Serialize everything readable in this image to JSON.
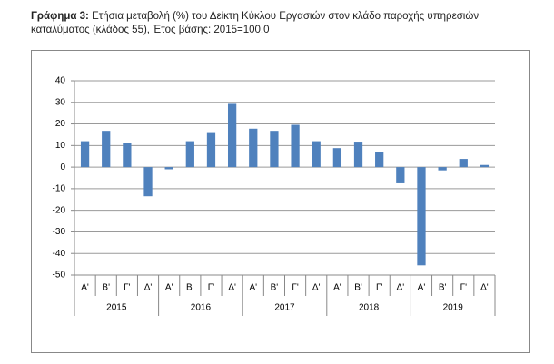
{
  "chart_data": {
    "type": "bar",
    "title_label": "Γράφημα 3:",
    "title": "Ετήσια μεταβολή (%) του Δείκτη Κύκλου Εργασιών στον κλάδο παροχής υπηρεσιών καταλύματος (κλάδος 55), Έτος βάσης: 2015=100,0",
    "categories": [
      "Α'",
      "Β'",
      "Γ'",
      "Δ'",
      "Α'",
      "Β'",
      "Γ'",
      "Δ'",
      "Α'",
      "Β'",
      "Γ'",
      "Δ'",
      "Α'",
      "Β'",
      "Γ'",
      "Δ'",
      "Α'",
      "Β'",
      "Γ'",
      "Δ'"
    ],
    "years": [
      "2015",
      "2016",
      "2017",
      "2018",
      "2019"
    ],
    "values": [
      12,
      16.8,
      11.3,
      -13.5,
      -1,
      12,
      16.2,
      29.3,
      17.8,
      16.8,
      19.6,
      12,
      8.8,
      11.8,
      6.8,
      -7.5,
      -45.5,
      -1.5,
      3.8,
      1
    ],
    "color": "#4f81bd",
    "ylim": [
      -50,
      40
    ],
    "yticks": [
      -50,
      -40,
      -30,
      -20,
      -10,
      0,
      10,
      20,
      30,
      40
    ],
    "grid": true
  }
}
